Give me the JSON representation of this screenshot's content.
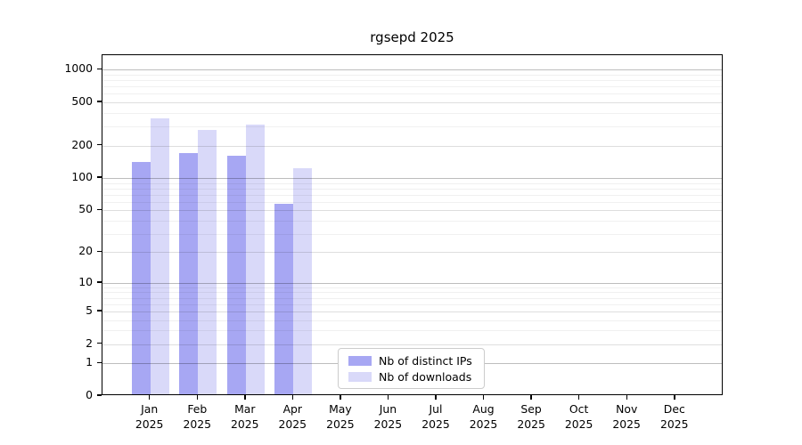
{
  "chart_data": {
    "type": "bar",
    "title": "rgsepd 2025",
    "categories": [
      "Jan 2025",
      "Feb 2025",
      "Mar 2025",
      "Apr 2025",
      "May 2025",
      "Jun 2025",
      "Jul 2025",
      "Aug 2025",
      "Sep 2025",
      "Oct 2025",
      "Nov 2025",
      "Dec 2025"
    ],
    "series": [
      {
        "name": "Nb of distinct IPs",
        "color": "#a7a7f3",
        "values": [
          142,
          170,
          162,
          58,
          null,
          null,
          null,
          null,
          null,
          null,
          null,
          null
        ]
      },
      {
        "name": "Nb of downloads",
        "color": "#d9d9f9",
        "values": [
          360,
          280,
          310,
          124,
          null,
          null,
          null,
          null,
          null,
          null,
          null,
          null
        ]
      }
    ],
    "y_axis": {
      "scale": "log10(1+y)",
      "tick_values": [
        0,
        1,
        2,
        5,
        10,
        20,
        50,
        100,
        200,
        500,
        1000
      ],
      "tick_labels": [
        "0",
        "1",
        "2",
        "5",
        "10",
        "20",
        "50",
        "100",
        "200",
        "500",
        "1000"
      ],
      "range": [
        0,
        1400
      ]
    },
    "x_axis": {
      "tick_labels_line2": "2025"
    },
    "grid": {
      "orientation": "horizontal",
      "major_ticks": [
        1,
        10,
        100,
        1000
      ],
      "mid_ticks": [
        2,
        5,
        20,
        50,
        200,
        500
      ],
      "minor_ticks": [
        3,
        4,
        6,
        7,
        8,
        9,
        30,
        40,
        60,
        70,
        80,
        90,
        300,
        400,
        600,
        700,
        800,
        900
      ]
    },
    "legend": {
      "position": "lower-center-inside",
      "entries": [
        "Nb of distinct IPs",
        "Nb of downloads"
      ]
    }
  }
}
